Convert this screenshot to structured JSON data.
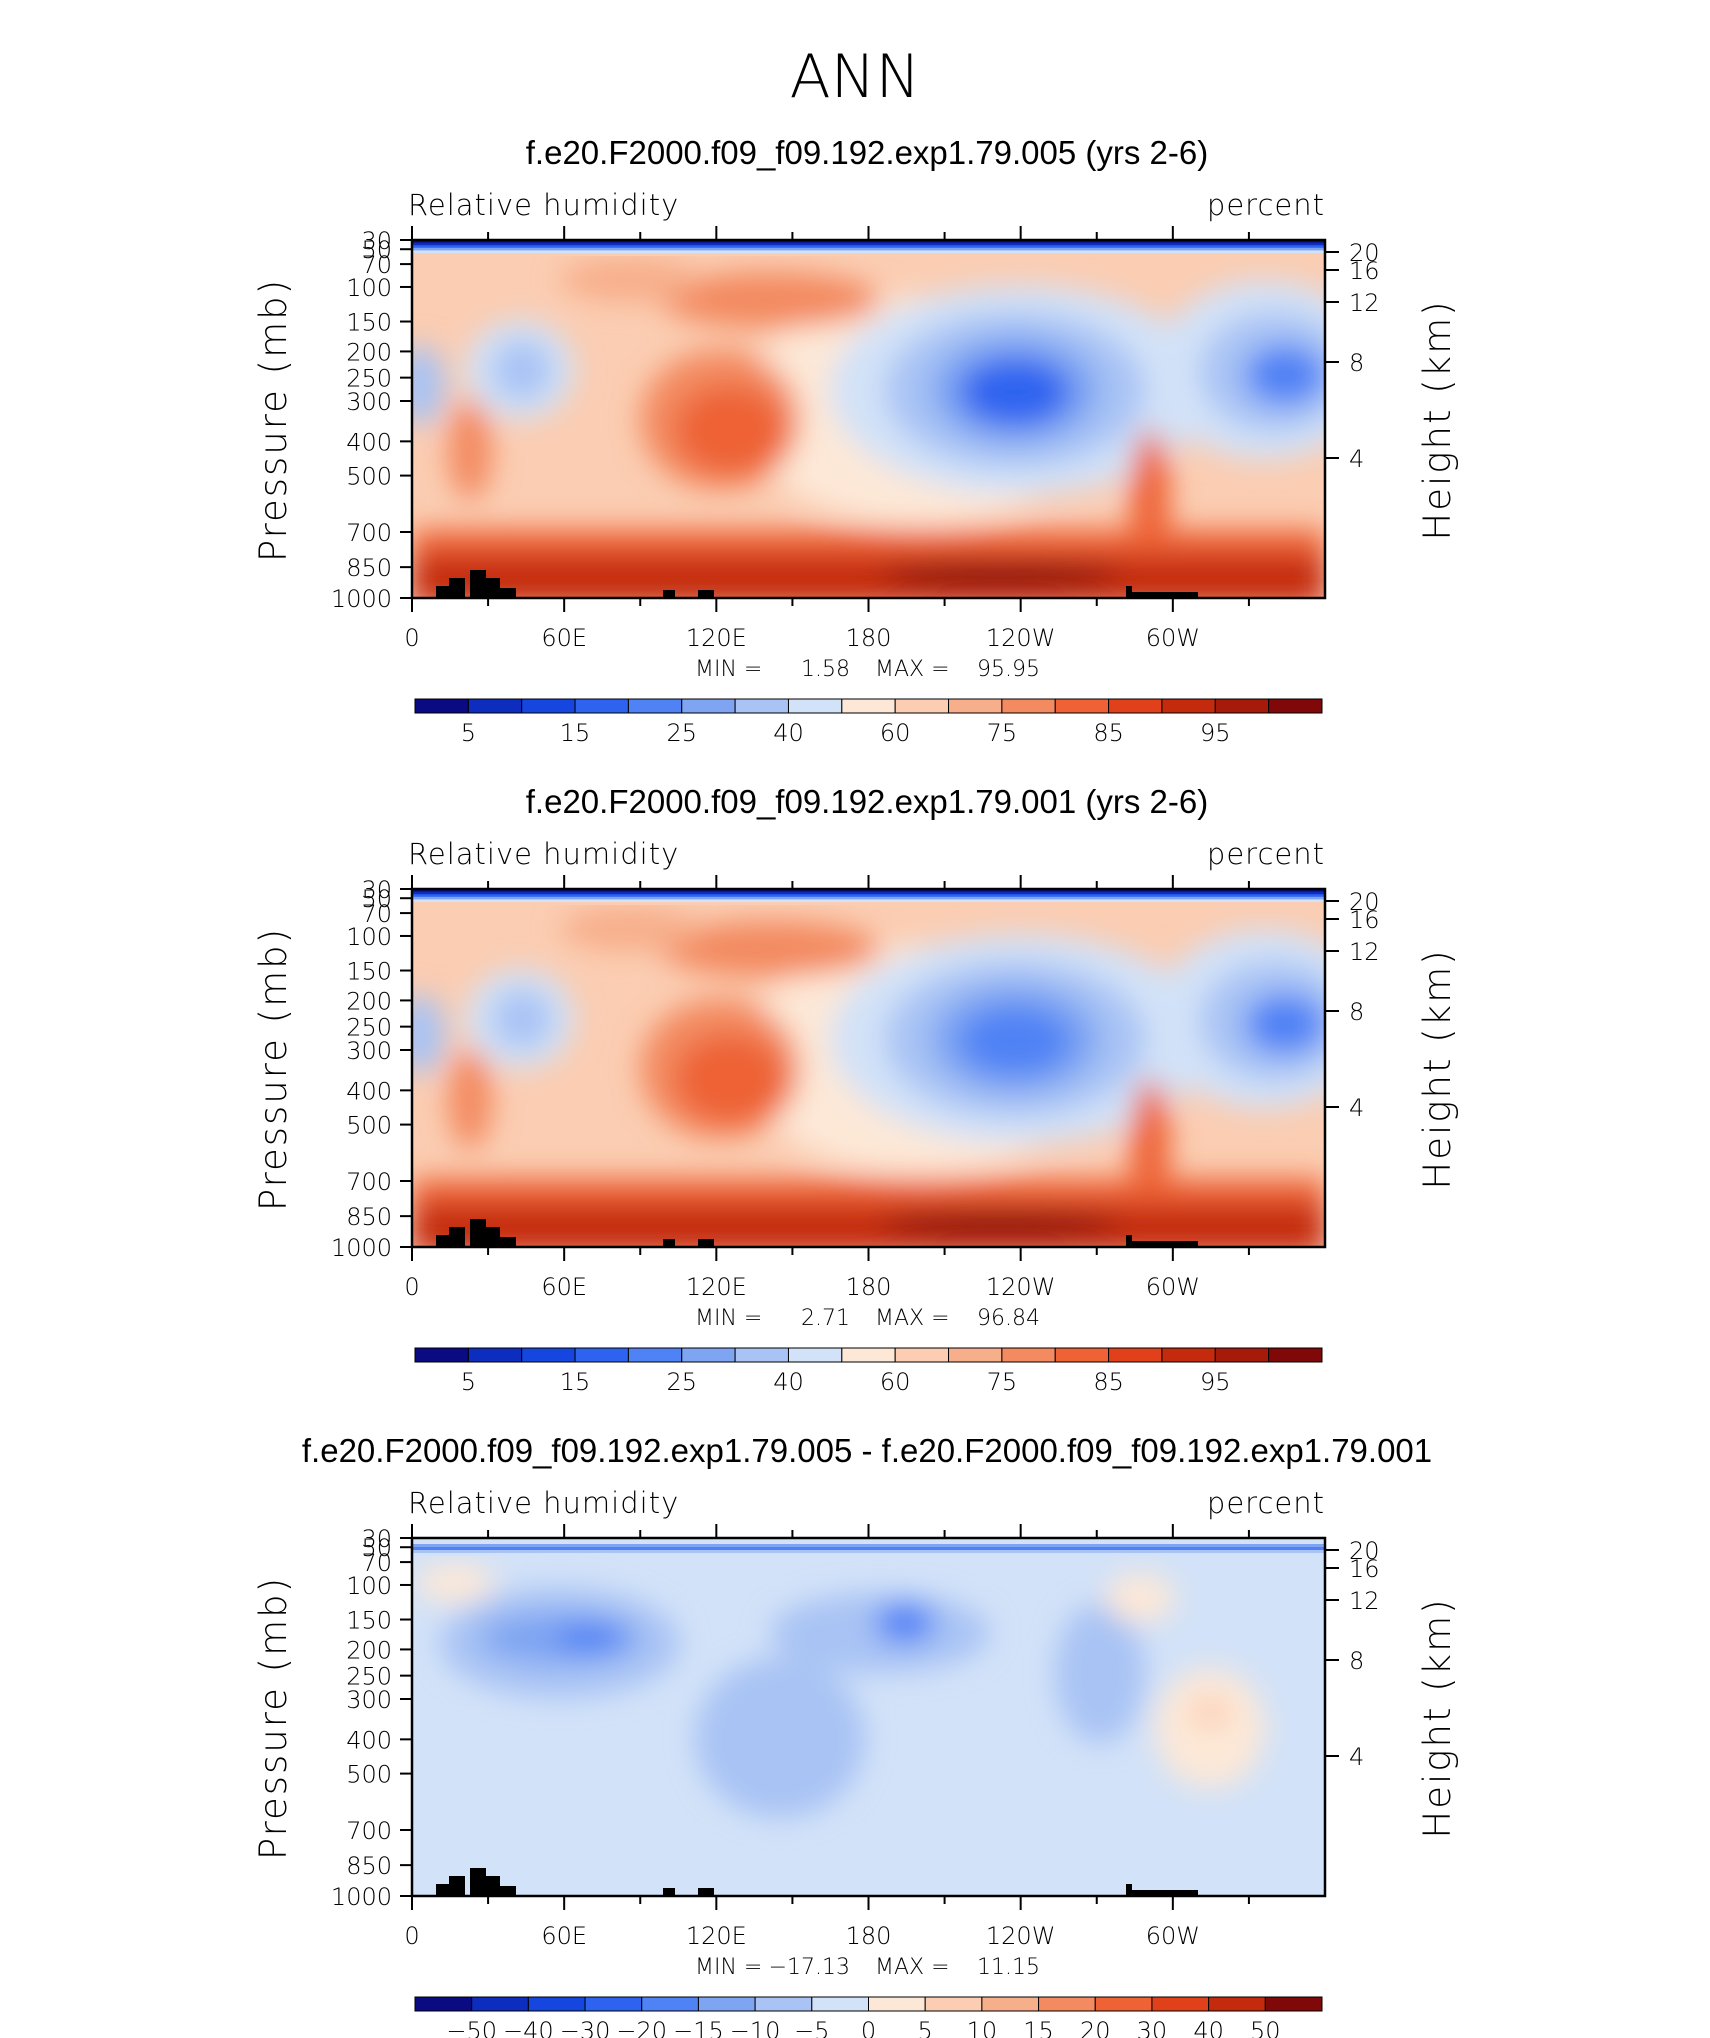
{
  "page_title": "ANN",
  "chart_data": [
    {
      "type": "contour",
      "title": "f.e20.F2000.f09_f09.192.exp1.79.005 (yrs 2-6)",
      "left_label": "Relative humidity",
      "right_label": "percent",
      "ylabel": "Pressure (mb)",
      "ylabel_right": "Height (km)",
      "x_ticks": [
        "0",
        "60E",
        "120E",
        "180",
        "120W",
        "60W"
      ],
      "y_ticks": [
        "30",
        "50",
        "70",
        "100",
        "150",
        "200",
        "250",
        "300",
        "400",
        "500",
        "700",
        "850",
        "1000"
      ],
      "y_right_ticks": [
        "20",
        "16",
        "12",
        "8",
        "4"
      ],
      "min_label": "MIN =",
      "min_value": "1.58",
      "max_label": "MAX =",
      "max_value": "95.95",
      "colorbar_labels": [
        "5",
        "15",
        "25",
        "40",
        "60",
        "75",
        "85",
        "95"
      ],
      "colorbar_colors": [
        "#0a0a82",
        "#0c2dbe",
        "#1547e0",
        "#2e63f0",
        "#4f82f5",
        "#7ea4f2",
        "#a8c3f4",
        "#d2e2f8",
        "#fde8d7",
        "#fbcdb2",
        "#f7ae8a",
        "#f38a60",
        "#ee6236",
        "#e0401a",
        "#c42a0c",
        "#a51a08",
        "#800808"
      ]
    },
    {
      "type": "contour",
      "title": "f.e20.F2000.f09_f09.192.exp1.79.001 (yrs 2-6)",
      "left_label": "Relative humidity",
      "right_label": "percent",
      "ylabel": "Pressure (mb)",
      "ylabel_right": "Height (km)",
      "x_ticks": [
        "0",
        "60E",
        "120E",
        "180",
        "120W",
        "60W"
      ],
      "y_ticks": [
        "30",
        "50",
        "70",
        "100",
        "150",
        "200",
        "250",
        "300",
        "400",
        "500",
        "700",
        "850",
        "1000"
      ],
      "y_right_ticks": [
        "20",
        "16",
        "12",
        "8",
        "4"
      ],
      "min_label": "MIN =",
      "min_value": "2.71",
      "max_label": "MAX =",
      "max_value": "96.84",
      "colorbar_labels": [
        "5",
        "15",
        "25",
        "40",
        "60",
        "75",
        "85",
        "95"
      ],
      "colorbar_colors": [
        "#0a0a82",
        "#0c2dbe",
        "#1547e0",
        "#2e63f0",
        "#4f82f5",
        "#7ea4f2",
        "#a8c3f4",
        "#d2e2f8",
        "#fde8d7",
        "#fbcdb2",
        "#f7ae8a",
        "#f38a60",
        "#ee6236",
        "#e0401a",
        "#c42a0c",
        "#a51a08",
        "#800808"
      ]
    },
    {
      "type": "contour",
      "title": "f.e20.F2000.f09_f09.192.exp1.79.005 - f.e20.F2000.f09_f09.192.exp1.79.001",
      "left_label": "Relative humidity",
      "right_label": "percent",
      "ylabel": "Pressure (mb)",
      "ylabel_right": "Height (km)",
      "x_ticks": [
        "0",
        "60E",
        "120E",
        "180",
        "120W",
        "60W"
      ],
      "y_ticks": [
        "30",
        "50",
        "70",
        "100",
        "150",
        "200",
        "250",
        "300",
        "400",
        "500",
        "700",
        "850",
        "1000"
      ],
      "y_right_ticks": [
        "20",
        "16",
        "12",
        "8",
        "4"
      ],
      "min_label": "MIN =",
      "min_value": "−17.13",
      "max_label": "MAX =",
      "max_value": "11.15",
      "colorbar_labels": [
        "−50",
        "−40",
        "−30",
        "−20",
        "−15",
        "−10",
        "−5",
        "0",
        "5",
        "10",
        "15",
        "20",
        "30",
        "40",
        "50"
      ],
      "colorbar_colors": [
        "#0a0a82",
        "#0c2dbe",
        "#1547e0",
        "#2e63f0",
        "#4f82f5",
        "#7ea4f2",
        "#a8c3f4",
        "#d2e2f8",
        "#fde8d7",
        "#fbcdb2",
        "#f7ae8a",
        "#f38a60",
        "#ee6236",
        "#e0401a",
        "#c42a0c",
        "#800808"
      ]
    }
  ]
}
